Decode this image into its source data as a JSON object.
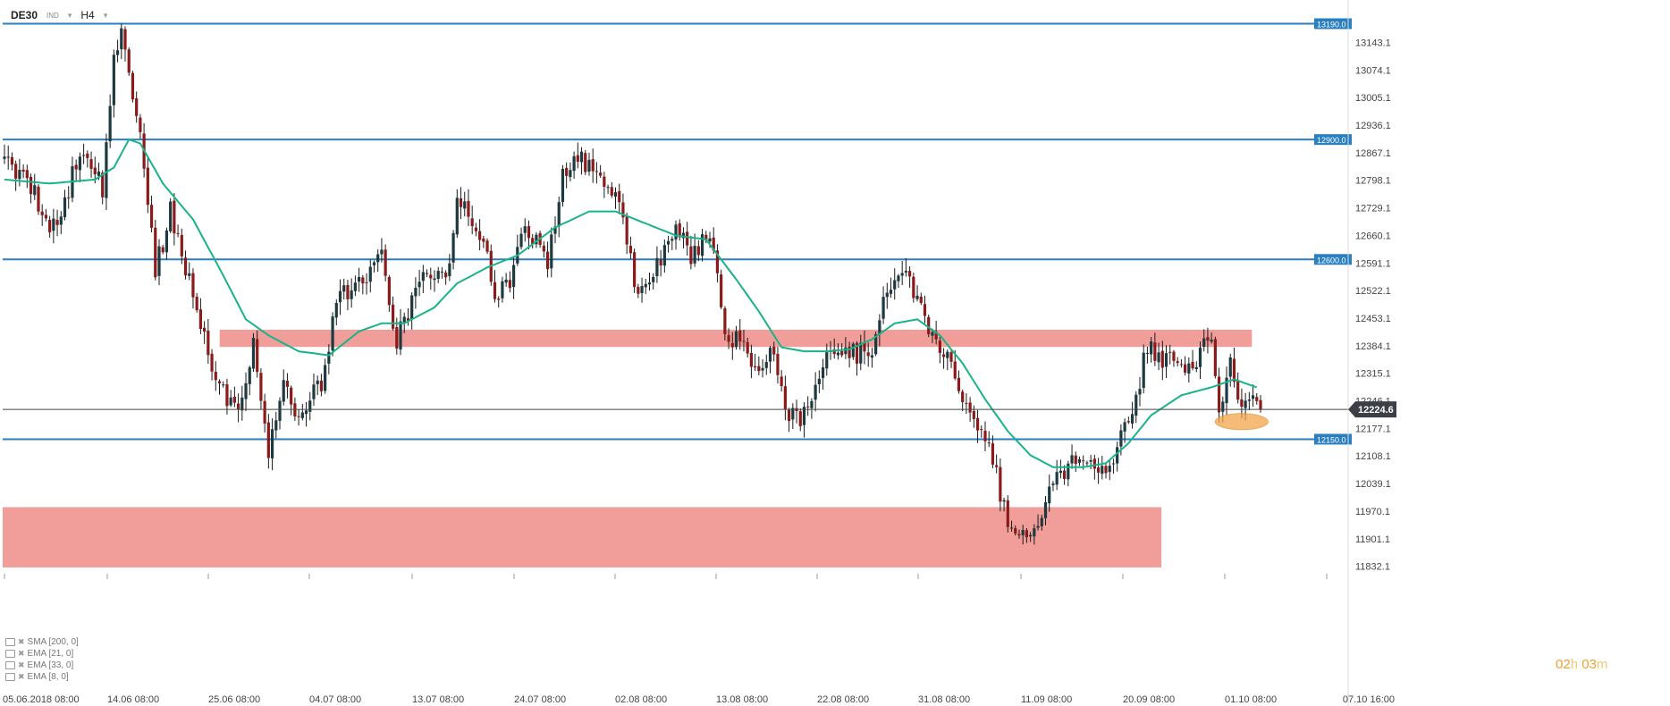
{
  "header": {
    "symbol": "DE30",
    "badge": "IND",
    "timeframe": "H4"
  },
  "price_axis": {
    "ticks": [
      "13143.1",
      "13074.1",
      "13005.1",
      "12936.1",
      "12867.1",
      "12798.1",
      "12729.1",
      "12660.1",
      "12591.1",
      "12522.1",
      "12453.1",
      "12384.1",
      "12315.1",
      "12246.1",
      "12177.1",
      "12108.1",
      "12039.1",
      "11970.1",
      "11901.1",
      "11832.1"
    ],
    "last_price": "12224.6"
  },
  "time_axis": {
    "labels": [
      "05.06.2018  08:00",
      "14.06  08:00",
      "25.06  08:00",
      "04.07  08:00",
      "13.07  08:00",
      "24.07  08:00",
      "02.08  08:00",
      "13.08  08:00",
      "22.08  08:00",
      "31.08  08:00",
      "11.09  08:00",
      "20.09  08:00",
      "01.10  08:00",
      "07.10  16:00"
    ]
  },
  "levels": [
    {
      "label": "13190.0",
      "value": 13190.0
    },
    {
      "label": "12900.0",
      "value": 12900.0
    },
    {
      "label": "12600.0",
      "value": 12600.0
    },
    {
      "label": "12150.0",
      "value": 12150.0
    }
  ],
  "zones": [
    {
      "name": "resistance-zone",
      "from": 12381,
      "to": 12424,
      "start_index": 58,
      "end_index": 330
    },
    {
      "name": "support-zone",
      "from": 11829,
      "to": 11980,
      "start_index": 0,
      "end_index": 306
    }
  ],
  "indicators": [
    {
      "label": "SMA  [200,  0]"
    },
    {
      "label": "EMA  [21,  0]"
    },
    {
      "label": "EMA  [33,  0]"
    },
    {
      "label": "EMA  [8,  0]"
    }
  ],
  "timer": {
    "hours": "02",
    "h": "h",
    "minutes": "03",
    "m": "m"
  },
  "colors": {
    "level": "#2a7fc1",
    "zone": "#ef8d8a",
    "bull": "#1d3a40",
    "bear": "#8b1a1a",
    "ma": "#19b38a",
    "highlight": "#f4a64a"
  },
  "chart_data": {
    "type": "candlestick",
    "title": "",
    "ylim": [
      11810,
      13220
    ],
    "moving_average_color": "#19b38a",
    "series": {
      "path_points": [
        {
          "i": 0,
          "v": 12850
        },
        {
          "i": 8,
          "v": 12760
        },
        {
          "i": 14,
          "v": 12660
        },
        {
          "i": 20,
          "v": 12880
        },
        {
          "i": 26,
          "v": 12780
        },
        {
          "i": 29,
          "v": 13100
        },
        {
          "i": 31,
          "v": 13160
        },
        {
          "i": 36,
          "v": 12900
        },
        {
          "i": 40,
          "v": 12570
        },
        {
          "i": 44,
          "v": 12720
        },
        {
          "i": 50,
          "v": 12510
        },
        {
          "i": 56,
          "v": 12300
        },
        {
          "i": 62,
          "v": 12210
        },
        {
          "i": 66,
          "v": 12400
        },
        {
          "i": 70,
          "v": 12120
        },
        {
          "i": 74,
          "v": 12310
        },
        {
          "i": 78,
          "v": 12200
        },
        {
          "i": 84,
          "v": 12290
        },
        {
          "i": 88,
          "v": 12500
        },
        {
          "i": 96,
          "v": 12540
        },
        {
          "i": 100,
          "v": 12610
        },
        {
          "i": 104,
          "v": 12400
        },
        {
          "i": 110,
          "v": 12540
        },
        {
          "i": 118,
          "v": 12580
        },
        {
          "i": 120,
          "v": 12760
        },
        {
          "i": 127,
          "v": 12650
        },
        {
          "i": 130,
          "v": 12510
        },
        {
          "i": 134,
          "v": 12540
        },
        {
          "i": 138,
          "v": 12700
        },
        {
          "i": 144,
          "v": 12580
        },
        {
          "i": 148,
          "v": 12800
        },
        {
          "i": 152,
          "v": 12860
        },
        {
          "i": 160,
          "v": 12790
        },
        {
          "i": 164,
          "v": 12700
        },
        {
          "i": 168,
          "v": 12490
        },
        {
          "i": 174,
          "v": 12610
        },
        {
          "i": 178,
          "v": 12700
        },
        {
          "i": 182,
          "v": 12600
        },
        {
          "i": 187,
          "v": 12670
        },
        {
          "i": 191,
          "v": 12420
        },
        {
          "i": 196,
          "v": 12380
        },
        {
          "i": 200,
          "v": 12330
        },
        {
          "i": 204,
          "v": 12360
        },
        {
          "i": 208,
          "v": 12200
        },
        {
          "i": 214,
          "v": 12220
        },
        {
          "i": 218,
          "v": 12380
        },
        {
          "i": 224,
          "v": 12360
        },
        {
          "i": 230,
          "v": 12380
        },
        {
          "i": 234,
          "v": 12540
        },
        {
          "i": 240,
          "v": 12550
        },
        {
          "i": 244,
          "v": 12440
        },
        {
          "i": 248,
          "v": 12380
        },
        {
          "i": 252,
          "v": 12320
        },
        {
          "i": 256,
          "v": 12200
        },
        {
          "i": 262,
          "v": 12100
        },
        {
          "i": 266,
          "v": 11940
        },
        {
          "i": 270,
          "v": 11920
        },
        {
          "i": 274,
          "v": 11940
        },
        {
          "i": 278,
          "v": 12050
        },
        {
          "i": 282,
          "v": 12080
        },
        {
          "i": 286,
          "v": 12110
        },
        {
          "i": 290,
          "v": 12050
        },
        {
          "i": 296,
          "v": 12150
        },
        {
          "i": 300,
          "v": 12260
        },
        {
          "i": 303,
          "v": 12380
        },
        {
          "i": 308,
          "v": 12350
        },
        {
          "i": 316,
          "v": 12340
        },
        {
          "i": 320,
          "v": 12420
        },
        {
          "i": 322,
          "v": 12200
        },
        {
          "i": 325,
          "v": 12330
        },
        {
          "i": 328,
          "v": 12230
        },
        {
          "i": 331,
          "v": 12270
        },
        {
          "i": 333,
          "v": 12224.6
        }
      ],
      "ma_points": [
        {
          "i": 0,
          "v": 12800
        },
        {
          "i": 12,
          "v": 12790
        },
        {
          "i": 24,
          "v": 12800
        },
        {
          "i": 29,
          "v": 12830
        },
        {
          "i": 33,
          "v": 12900
        },
        {
          "i": 36,
          "v": 12890
        },
        {
          "i": 42,
          "v": 12790
        },
        {
          "i": 50,
          "v": 12700
        },
        {
          "i": 58,
          "v": 12560
        },
        {
          "i": 64,
          "v": 12450
        },
        {
          "i": 70,
          "v": 12410
        },
        {
          "i": 78,
          "v": 12370
        },
        {
          "i": 86,
          "v": 12360
        },
        {
          "i": 94,
          "v": 12420
        },
        {
          "i": 100,
          "v": 12440
        },
        {
          "i": 106,
          "v": 12440
        },
        {
          "i": 114,
          "v": 12480
        },
        {
          "i": 120,
          "v": 12540
        },
        {
          "i": 128,
          "v": 12580
        },
        {
          "i": 136,
          "v": 12610
        },
        {
          "i": 146,
          "v": 12680
        },
        {
          "i": 155,
          "v": 12720
        },
        {
          "i": 162,
          "v": 12720
        },
        {
          "i": 170,
          "v": 12690
        },
        {
          "i": 178,
          "v": 12660
        },
        {
          "i": 186,
          "v": 12650
        },
        {
          "i": 194,
          "v": 12550
        },
        {
          "i": 200,
          "v": 12470
        },
        {
          "i": 206,
          "v": 12380
        },
        {
          "i": 212,
          "v": 12370
        },
        {
          "i": 218,
          "v": 12370
        },
        {
          "i": 224,
          "v": 12375
        },
        {
          "i": 230,
          "v": 12400
        },
        {
          "i": 236,
          "v": 12440
        },
        {
          "i": 242,
          "v": 12450
        },
        {
          "i": 248,
          "v": 12410
        },
        {
          "i": 254,
          "v": 12340
        },
        {
          "i": 260,
          "v": 12250
        },
        {
          "i": 266,
          "v": 12170
        },
        {
          "i": 272,
          "v": 12110
        },
        {
          "i": 278,
          "v": 12080
        },
        {
          "i": 286,
          "v": 12080
        },
        {
          "i": 292,
          "v": 12090
        },
        {
          "i": 298,
          "v": 12140
        },
        {
          "i": 304,
          "v": 12210
        },
        {
          "i": 312,
          "v": 12260
        },
        {
          "i": 320,
          "v": 12280
        },
        {
          "i": 326,
          "v": 12300
        },
        {
          "i": 332,
          "v": 12280
        }
      ]
    },
    "candles": 334,
    "highlight": {
      "name": "current-support-marker",
      "index_from": 321,
      "index_to": 335,
      "value": 12194
    }
  }
}
